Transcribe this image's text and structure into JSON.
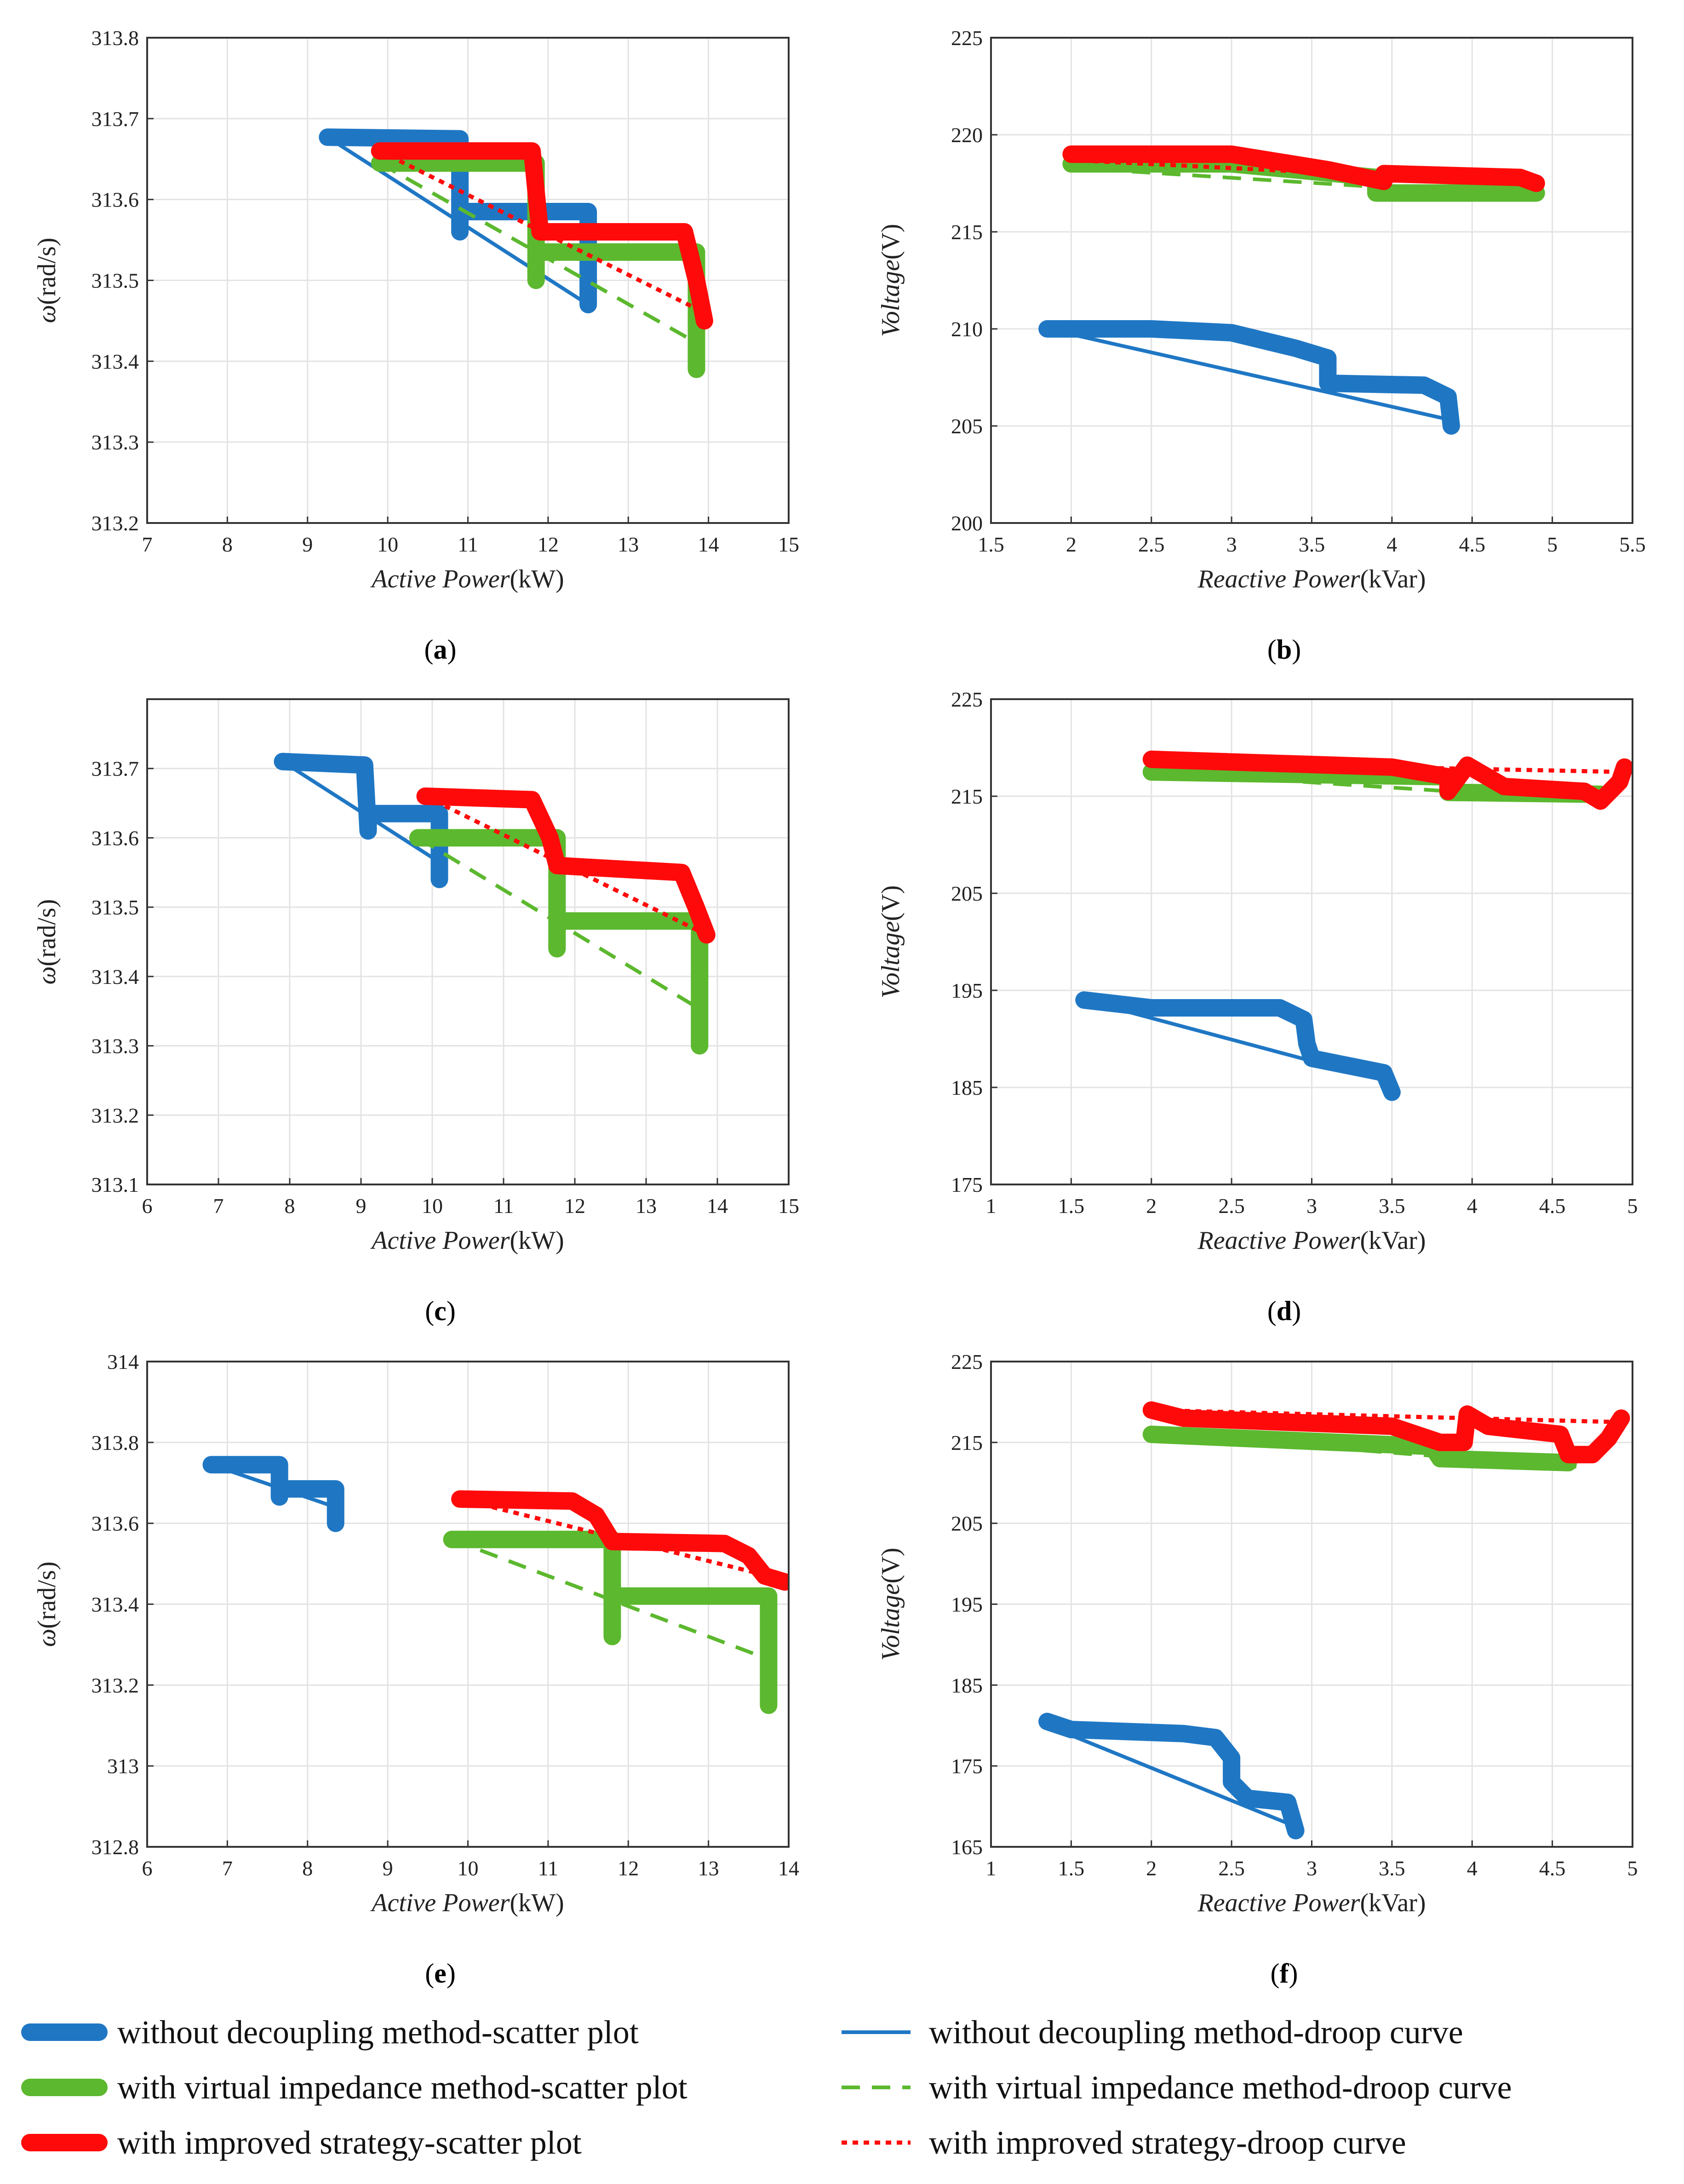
{
  "legend": [
    {
      "key": "scatter_without",
      "label": "without decoupling method-scatter plot",
      "color": "#1f77c4",
      "style": "thick"
    },
    {
      "key": "scatter_virtual",
      "label": "with virtual impedance method-scatter plot",
      "color": "#5cb82e",
      "style": "thick"
    },
    {
      "key": "scatter_improved",
      "label": "with improved strategy-scatter plot",
      "color": "#ff0a0a",
      "style": "thick"
    },
    {
      "key": "droop_without",
      "label": "without decoupling method-droop curve",
      "color": "#1f77c4",
      "style": "solid"
    },
    {
      "key": "droop_virtual",
      "label": "with virtual impedance method-droop curve",
      "color": "#5cb82e",
      "style": "dashed"
    },
    {
      "key": "droop_improved",
      "label": "with improved strategy-droop curve",
      "color": "#ff0a0a",
      "style": "dotted"
    }
  ],
  "chart_data": [
    {
      "id": "a",
      "panel_label": "a",
      "type": "line",
      "xlabel_italic": "Active Power",
      "xlabel_unit": "(kW)",
      "ylabel_symbol": "ω",
      "ylabel_unit": "(rad/s)",
      "xlim": [
        7,
        15
      ],
      "ylim": [
        313.2,
        313.8
      ],
      "xticks": [
        "7",
        "8",
        "9",
        "10",
        "11",
        "12",
        "13",
        "14",
        "15"
      ],
      "yticks": [
        "313.2",
        "313.3",
        "313.4",
        "313.5",
        "313.6",
        "313.7",
        "313.8"
      ],
      "series": [
        {
          "key": "scatter_without",
          "points": [
            [
              9.25,
              313.677
            ],
            [
              10.9,
              313.675
            ],
            [
              10.9,
              313.56
            ],
            [
              10.9,
              313.585
            ],
            [
              12.5,
              313.585
            ],
            [
              12.5,
              313.47
            ]
          ]
        },
        {
          "key": "droop_without",
          "points": [
            [
              9.25,
              313.677
            ],
            [
              12.5,
              313.47
            ]
          ]
        },
        {
          "key": "scatter_virtual",
          "points": [
            [
              9.9,
              313.645
            ],
            [
              11.85,
              313.645
            ],
            [
              11.85,
              313.5
            ],
            [
              11.85,
              313.535
            ],
            [
              13.85,
              313.535
            ],
            [
              13.85,
              313.39
            ]
          ]
        },
        {
          "key": "droop_virtual",
          "points": [
            [
              9.9,
              313.645
            ],
            [
              13.9,
              313.42
            ]
          ]
        },
        {
          "key": "scatter_improved",
          "points": [
            [
              9.9,
              313.66
            ],
            [
              11.8,
              313.66
            ],
            [
              11.9,
              313.56
            ],
            [
              13.7,
              313.56
            ],
            [
              13.85,
              313.5
            ],
            [
              13.95,
              313.45
            ]
          ]
        },
        {
          "key": "droop_improved",
          "points": [
            [
              9.9,
              313.66
            ],
            [
              13.95,
              313.46
            ]
          ]
        }
      ]
    },
    {
      "id": "b",
      "panel_label": "b",
      "type": "line",
      "xlabel_italic": "Reactive Power",
      "xlabel_unit": "(kVar)",
      "ylabel_symbol": "Voltage",
      "ylabel_unit": "(V)",
      "xlim": [
        1.5,
        5.5
      ],
      "ylim": [
        200,
        225
      ],
      "xticks": [
        "1.5",
        "2",
        "2.5",
        "3",
        "3.5",
        "4",
        "4.5",
        "5",
        "5.5"
      ],
      "yticks": [
        "200",
        "205",
        "210",
        "215",
        "220",
        "225"
      ],
      "series": [
        {
          "key": "scatter_without",
          "points": [
            [
              1.85,
              210
            ],
            [
              2.5,
              210
            ],
            [
              3.0,
              209.8
            ],
            [
              3.4,
              209
            ],
            [
              3.6,
              208.5
            ],
            [
              3.6,
              207.2
            ],
            [
              4.2,
              207.1
            ],
            [
              4.35,
              206.5
            ],
            [
              4.37,
              205
            ]
          ]
        },
        {
          "key": "droop_without",
          "points": [
            [
              1.85,
              210
            ],
            [
              4.37,
              205.3
            ]
          ]
        },
        {
          "key": "scatter_virtual",
          "points": [
            [
              2.0,
              218.5
            ],
            [
              3.0,
              218.5
            ],
            [
              3.9,
              217.8
            ],
            [
              3.9,
              217.0
            ],
            [
              4.9,
              217.0
            ]
          ]
        },
        {
          "key": "droop_virtual",
          "points": [
            [
              2.0,
              218.3
            ],
            [
              4.9,
              216.8
            ]
          ]
        },
        {
          "key": "scatter_improved",
          "points": [
            [
              2.0,
              219
            ],
            [
              3.0,
              219
            ],
            [
              3.6,
              218.2
            ],
            [
              3.95,
              217.6
            ],
            [
              3.95,
              218
            ],
            [
              4.8,
              217.8
            ],
            [
              4.9,
              217.5
            ]
          ]
        },
        {
          "key": "droop_improved",
          "points": [
            [
              2.0,
              218.7
            ],
            [
              4.9,
              217.5
            ]
          ]
        }
      ]
    },
    {
      "id": "c",
      "panel_label": "c",
      "type": "line",
      "xlabel_italic": "Active Power",
      "xlabel_unit": "(kW)",
      "ylabel_symbol": "ω",
      "ylabel_unit": "(rad/s)",
      "xlim": [
        6,
        15
      ],
      "ylim": [
        313.1,
        313.8
      ],
      "xticks": [
        "6",
        "7",
        "8",
        "9",
        "10",
        "11",
        "12",
        "13",
        "14",
        "15"
      ],
      "yticks": [
        "313.1",
        "313.2",
        "313.3",
        "313.4",
        "313.5",
        "313.6",
        "313.7"
      ],
      "series": [
        {
          "key": "scatter_without",
          "points": [
            [
              7.9,
              313.71
            ],
            [
              9.05,
              313.705
            ],
            [
              9.1,
              313.61
            ],
            [
              9.1,
              313.635
            ],
            [
              10.1,
              313.635
            ],
            [
              10.1,
              313.54
            ]
          ]
        },
        {
          "key": "droop_without",
          "points": [
            [
              7.9,
              313.71
            ],
            [
              10.1,
              313.565
            ]
          ]
        },
        {
          "key": "scatter_virtual",
          "points": [
            [
              9.8,
              313.6
            ],
            [
              11.75,
              313.6
            ],
            [
              11.75,
              313.44
            ],
            [
              11.75,
              313.48
            ],
            [
              13.75,
              313.48
            ],
            [
              13.75,
              313.3
            ]
          ]
        },
        {
          "key": "droop_virtual",
          "points": [
            [
              9.8,
              313.6
            ],
            [
              13.8,
              313.35
            ]
          ]
        },
        {
          "key": "scatter_improved",
          "points": [
            [
              9.9,
              313.66
            ],
            [
              11.4,
              313.655
            ],
            [
              11.65,
              313.6
            ],
            [
              11.75,
              313.56
            ],
            [
              13.5,
              313.55
            ],
            [
              13.7,
              313.5
            ],
            [
              13.85,
              313.46
            ]
          ]
        },
        {
          "key": "droop_improved",
          "points": [
            [
              9.9,
              313.66
            ],
            [
              13.85,
              313.46
            ]
          ]
        }
      ]
    },
    {
      "id": "d",
      "panel_label": "d",
      "type": "line",
      "xlabel_italic": "Reactive Power",
      "xlabel_unit": "(kVar)",
      "ylabel_symbol": "Voltage",
      "ylabel_unit": "(V)",
      "xlim": [
        1,
        5
      ],
      "ylim": [
        175,
        225
      ],
      "xticks": [
        "1",
        "1.5",
        "2",
        "2.5",
        "3",
        "3.5",
        "4",
        "4.5",
        "5"
      ],
      "yticks": [
        "175",
        "185",
        "195",
        "205",
        "215",
        "225"
      ],
      "series": [
        {
          "key": "scatter_without",
          "points": [
            [
              1.58,
              194
            ],
            [
              2.0,
              193.2
            ],
            [
              2.8,
              193.2
            ],
            [
              2.95,
              192
            ],
            [
              2.97,
              189.5
            ],
            [
              3.0,
              188
            ],
            [
              3.45,
              186.5
            ],
            [
              3.5,
              184.5
            ]
          ]
        },
        {
          "key": "droop_without",
          "points": [
            [
              1.58,
              194
            ],
            [
              3.5,
              185.5
            ]
          ]
        },
        {
          "key": "scatter_virtual",
          "points": [
            [
              2.0,
              217.5
            ],
            [
              3.85,
              217
            ],
            [
              3.85,
              215.4
            ],
            [
              4.8,
              215.2
            ]
          ]
        },
        {
          "key": "droop_virtual",
          "points": [
            [
              2.0,
              217.5
            ],
            [
              4.8,
              214.5
            ]
          ]
        },
        {
          "key": "scatter_improved",
          "points": [
            [
              2.0,
              218.8
            ],
            [
              3.5,
              218
            ],
            [
              3.85,
              217
            ],
            [
              3.85,
              215.5
            ],
            [
              3.97,
              218.2
            ],
            [
              4.2,
              216
            ],
            [
              4.7,
              215.5
            ],
            [
              4.8,
              214.5
            ],
            [
              4.92,
              216.5
            ],
            [
              4.95,
              218
            ]
          ]
        },
        {
          "key": "droop_improved",
          "points": [
            [
              2.0,
              218.5
            ],
            [
              4.95,
              217.5
            ]
          ]
        }
      ]
    },
    {
      "id": "e",
      "panel_label": "e",
      "type": "line",
      "xlabel_italic": "Active Power",
      "xlabel_unit": "(kW)",
      "ylabel_symbol": "ω",
      "ylabel_unit": "(rad/s)",
      "xlim": [
        6,
        14
      ],
      "ylim": [
        312.8,
        314
      ],
      "xticks": [
        "6",
        "7",
        "8",
        "9",
        "10",
        "11",
        "12",
        "13",
        "14"
      ],
      "yticks": [
        "312.8",
        "313",
        "313.2",
        "313.4",
        "313.6",
        "313.8",
        "314"
      ],
      "series": [
        {
          "key": "scatter_without",
          "points": [
            [
              6.8,
              313.745
            ],
            [
              7.65,
              313.745
            ],
            [
              7.65,
              313.665
            ],
            [
              7.65,
              313.685
            ],
            [
              8.35,
              313.685
            ],
            [
              8.35,
              313.6
            ]
          ]
        },
        {
          "key": "droop_without",
          "points": [
            [
              6.8,
              313.745
            ],
            [
              8.35,
              313.64
            ]
          ]
        },
        {
          "key": "scatter_virtual",
          "points": [
            [
              9.8,
              313.56
            ],
            [
              11.8,
              313.56
            ],
            [
              11.8,
              313.32
            ],
            [
              11.8,
              313.42
            ],
            [
              13.75,
              313.42
            ],
            [
              13.75,
              313.15
            ]
          ]
        },
        {
          "key": "droop_virtual",
          "points": [
            [
              9.8,
              313.56
            ],
            [
              13.8,
              313.26
            ]
          ]
        },
        {
          "key": "scatter_improved",
          "points": [
            [
              9.9,
              313.66
            ],
            [
              11.3,
              313.655
            ],
            [
              11.6,
              313.62
            ],
            [
              11.8,
              313.555
            ],
            [
              13.2,
              313.55
            ],
            [
              13.5,
              313.52
            ],
            [
              13.7,
              313.47
            ],
            [
              13.95,
              313.455
            ]
          ]
        },
        {
          "key": "droop_improved",
          "points": [
            [
              9.9,
              313.66
            ],
            [
              13.95,
              313.46
            ]
          ]
        }
      ]
    },
    {
      "id": "f",
      "panel_label": "f",
      "type": "line",
      "xlabel_italic": "Reactive Power",
      "xlabel_unit": "(kVar)",
      "ylabel_symbol": "Voltage",
      "ylabel_unit": "(V)",
      "xlim": [
        1,
        5
      ],
      "ylim": [
        165,
        225
      ],
      "xticks": [
        "1",
        "1.5",
        "2",
        "2.5",
        "3",
        "3.5",
        "4",
        "4.5",
        "5"
      ],
      "yticks": [
        "165",
        "175",
        "185",
        "195",
        "205",
        "215",
        "225"
      ],
      "series": [
        {
          "key": "scatter_without",
          "points": [
            [
              1.35,
              180.5
            ],
            [
              1.5,
              179.5
            ],
            [
              2.2,
              179
            ],
            [
              2.4,
              178.5
            ],
            [
              2.5,
              176
            ],
            [
              2.5,
              173
            ],
            [
              2.6,
              171
            ],
            [
              2.85,
              170.5
            ],
            [
              2.9,
              167
            ]
          ]
        },
        {
          "key": "droop_without",
          "points": [
            [
              1.35,
              180
            ],
            [
              2.9,
              167.5
            ]
          ]
        },
        {
          "key": "scatter_virtual",
          "points": [
            [
              2.0,
              216
            ],
            [
              3.75,
              214.5
            ],
            [
              3.8,
              213
            ],
            [
              4.6,
              212.5
            ]
          ]
        },
        {
          "key": "droop_virtual",
          "points": [
            [
              2.0,
              216
            ],
            [
              4.65,
              212
            ]
          ]
        },
        {
          "key": "scatter_improved",
          "points": [
            [
              2.0,
              219
            ],
            [
              2.2,
              218
            ],
            [
              3.5,
              217
            ],
            [
              3.8,
              215
            ],
            [
              3.95,
              215
            ],
            [
              3.97,
              218.5
            ],
            [
              4.1,
              217
            ],
            [
              4.55,
              216
            ],
            [
              4.6,
              213.5
            ],
            [
              4.75,
              213.5
            ],
            [
              4.85,
              215.5
            ],
            [
              4.93,
              218
            ]
          ]
        },
        {
          "key": "droop_improved",
          "points": [
            [
              2.0,
              219
            ],
            [
              4.95,
              217.5
            ]
          ]
        }
      ]
    }
  ]
}
